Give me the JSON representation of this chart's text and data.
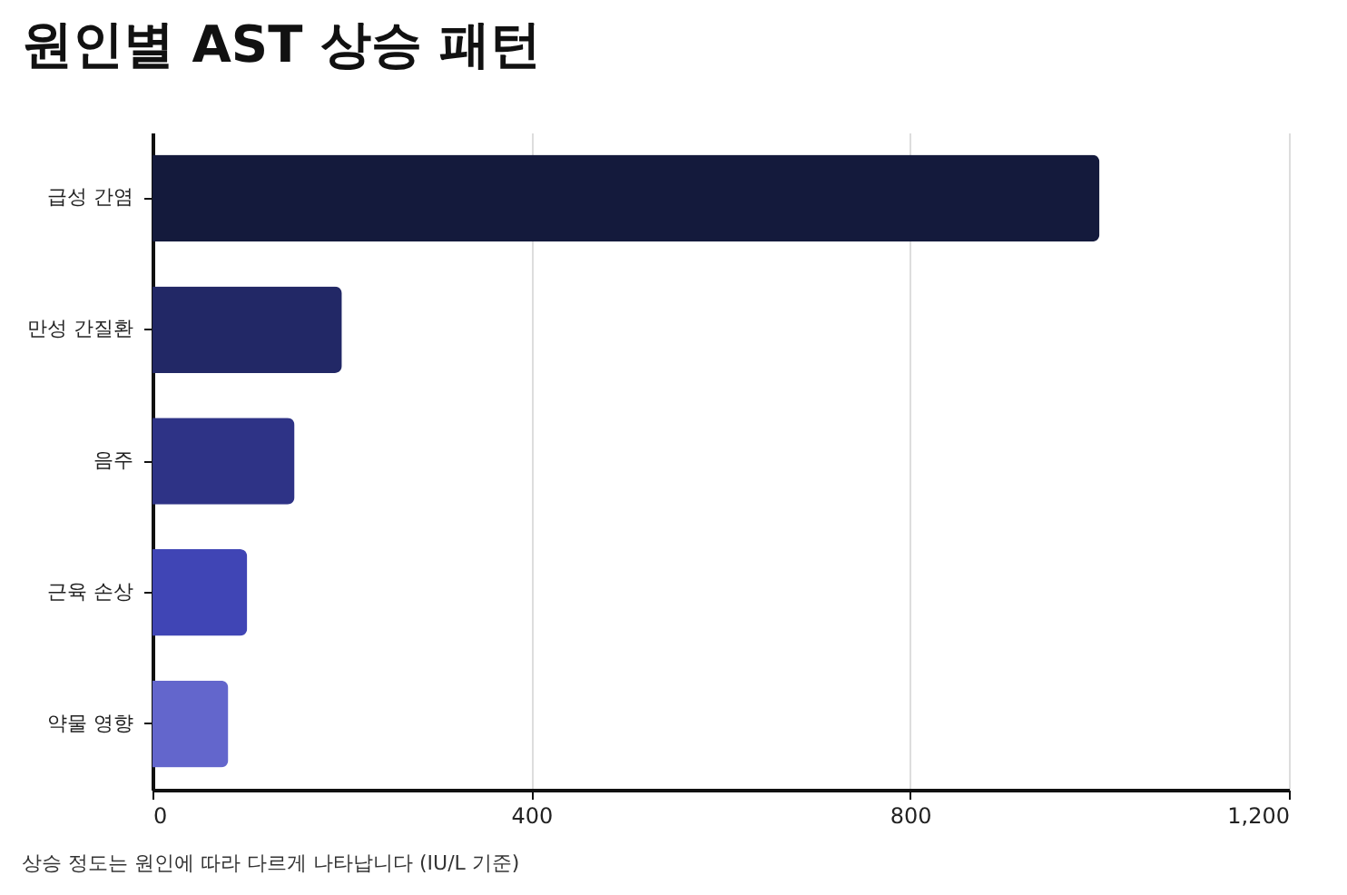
{
  "chart_data": {
    "type": "bar",
    "orientation": "horizontal",
    "title": "원인별 AST 상승 패턴",
    "categories": [
      "급성 간염",
      "만성 간질환",
      "음주",
      "근육 손상",
      "약물 영향"
    ],
    "values": [
      1000,
      200,
      150,
      100,
      80
    ],
    "colors": [
      "#141a3c",
      "#222866",
      "#2e3386",
      "#4045b5",
      "#6366cc"
    ],
    "xlim": [
      0,
      1200
    ],
    "xticks": [
      0,
      400,
      800,
      {
        "value": 1200,
        "label": "1,200"
      }
    ],
    "grid": "x",
    "annotations": [
      "상승 정도는 원인에 따라 다르게 나타납니다 (IU/L 기준)"
    ]
  }
}
